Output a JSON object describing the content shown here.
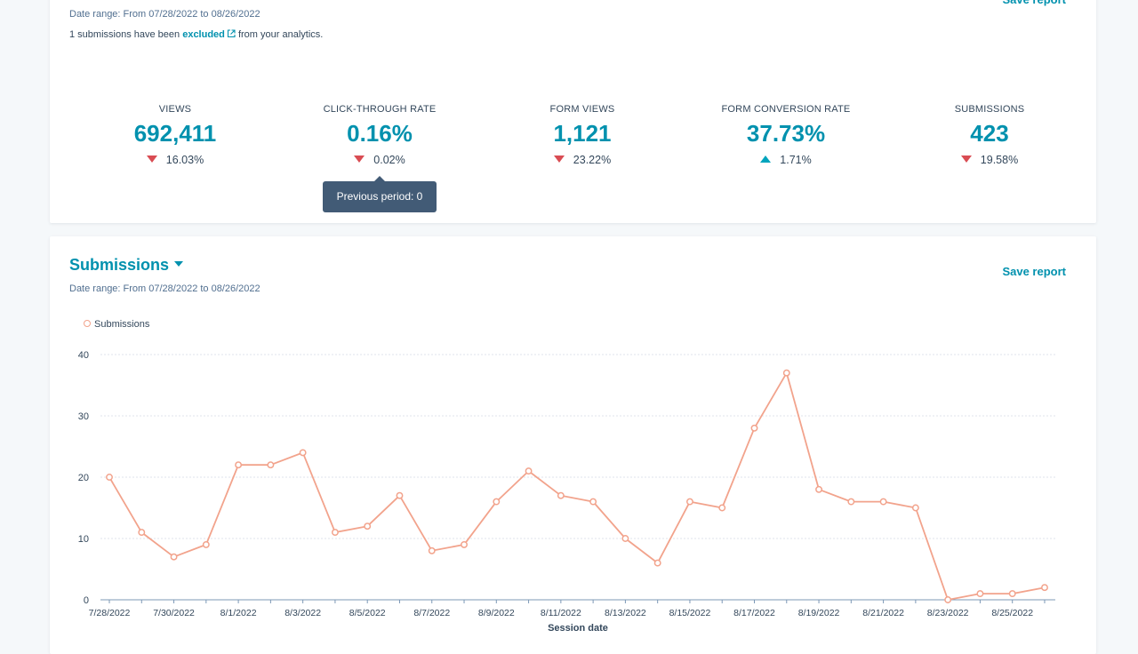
{
  "top_card": {
    "date_range": "Date range: From 07/28/2022 to 08/26/2022",
    "excluded_prefix": "1 submissions have been",
    "excluded_link": "excluded",
    "excluded_suffix": "from your analytics.",
    "kpis": [
      {
        "label": "VIEWS",
        "value": "692,411",
        "change": "16.03%",
        "direction": "down"
      },
      {
        "label": "CLICK-THROUGH RATE",
        "value": "0.16%",
        "change": "0.02%",
        "direction": "down"
      },
      {
        "label": "FORM VIEWS",
        "value": "1,121",
        "change": "23.22%",
        "direction": "down"
      },
      {
        "label": "FORM CONVERSION RATE",
        "value": "37.73%",
        "change": "1.71%",
        "direction": "up"
      },
      {
        "label": "SUBMISSIONS",
        "value": "423",
        "change": "19.58%",
        "direction": "down"
      }
    ],
    "tooltip": "Previous period: 0"
  },
  "submissions_card": {
    "title": "Submissions",
    "save_report": "Save report",
    "date_range": "Date range: From 07/28/2022 to 08/26/2022"
  },
  "colors": {
    "accent": "#0091ae",
    "series_line": "#f2a38c",
    "decrease": "#d94c53",
    "increase": "#00a4bd"
  },
  "chart_data": {
    "type": "line",
    "xlabel": "Session date",
    "ylabel": "",
    "ylim": [
      0,
      40
    ],
    "yticks": [
      0,
      10,
      20,
      30,
      40
    ],
    "grid": true,
    "legend": "top-left",
    "x": [
      "7/28/2022",
      "7/29/2022",
      "7/30/2022",
      "7/31/2022",
      "8/1/2022",
      "8/2/2022",
      "8/3/2022",
      "8/4/2022",
      "8/5/2022",
      "8/6/2022",
      "8/7/2022",
      "8/8/2022",
      "8/9/2022",
      "8/10/2022",
      "8/11/2022",
      "8/12/2022",
      "8/13/2022",
      "8/14/2022",
      "8/15/2022",
      "8/16/2022",
      "8/17/2022",
      "8/18/2022",
      "8/19/2022",
      "8/20/2022",
      "8/21/2022",
      "8/22/2022",
      "8/23/2022",
      "8/24/2022",
      "8/25/2022",
      "8/26/2022"
    ],
    "x_tick_labels": [
      "7/28/2022",
      "7/30/2022",
      "8/1/2022",
      "8/3/2022",
      "8/5/2022",
      "8/7/2022",
      "8/9/2022",
      "8/11/2022",
      "8/13/2022",
      "8/15/2022",
      "8/17/2022",
      "8/19/2022",
      "8/21/2022",
      "8/23/2022",
      "8/25/2022"
    ],
    "series": [
      {
        "name": "Submissions",
        "values": [
          20,
          11,
          7,
          9,
          22,
          22,
          24,
          11,
          12,
          17,
          8,
          9,
          16,
          21,
          17,
          16,
          10,
          6,
          16,
          15,
          28,
          37,
          18,
          16,
          16,
          15,
          0,
          1,
          1,
          2
        ]
      }
    ]
  }
}
